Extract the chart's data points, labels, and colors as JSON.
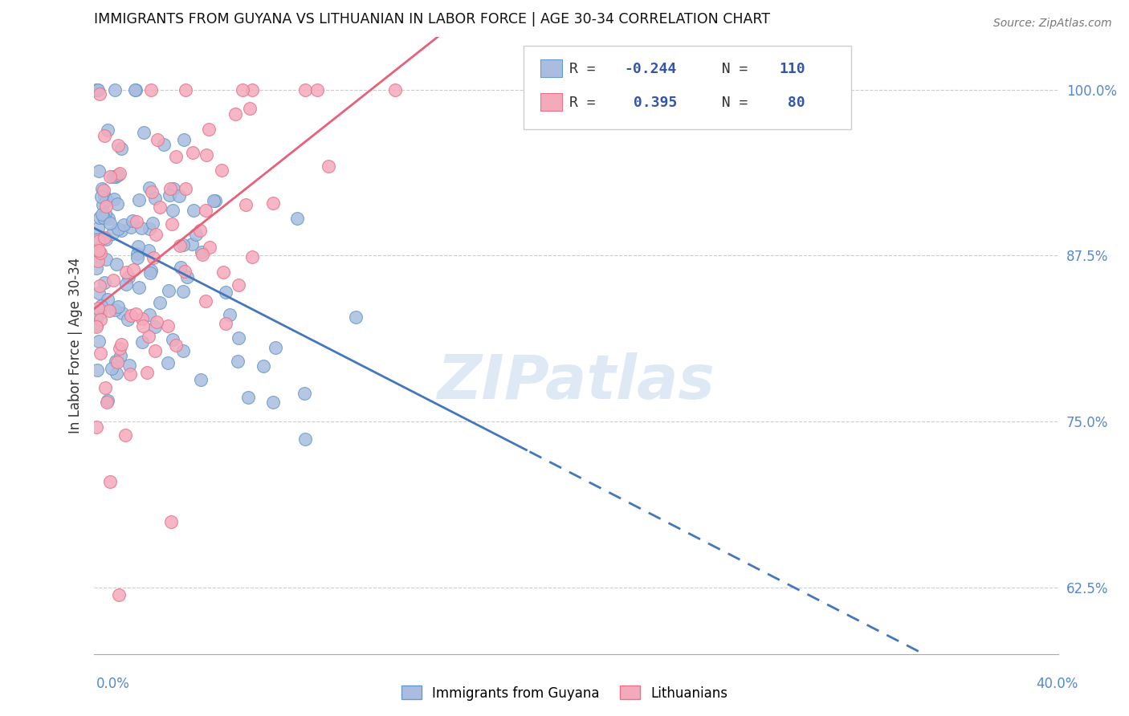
{
  "title": "IMMIGRANTS FROM GUYANA VS LITHUANIAN IN LABOR FORCE | AGE 30-34 CORRELATION CHART",
  "source": "Source: ZipAtlas.com",
  "ylabel": "In Labor Force | Age 30-34",
  "yticks": [
    0.625,
    0.75,
    0.875,
    1.0
  ],
  "ytick_labels": [
    "62.5%",
    "75.0%",
    "87.5%",
    "100.0%"
  ],
  "xmin": 0.0,
  "xmax": 0.4,
  "ymin": 0.575,
  "ymax": 1.04,
  "guyana_color_fill": "#aabde0",
  "guyana_color_edge": "#6699cc",
  "lithuanian_color_fill": "#f5aabb",
  "lithuanian_color_edge": "#e8728a",
  "guyana_R": -0.244,
  "guyana_N": 110,
  "lithuanian_R": 0.395,
  "lithuanian_N": 80,
  "watermark": "ZIPatlas",
  "trend_blue_solid_end": 0.18,
  "trend_blue_color": "#4477bb",
  "trend_pink_color": "#e8607a",
  "legend_R_color": "#3355aa",
  "legend_N_color": "#3355aa"
}
